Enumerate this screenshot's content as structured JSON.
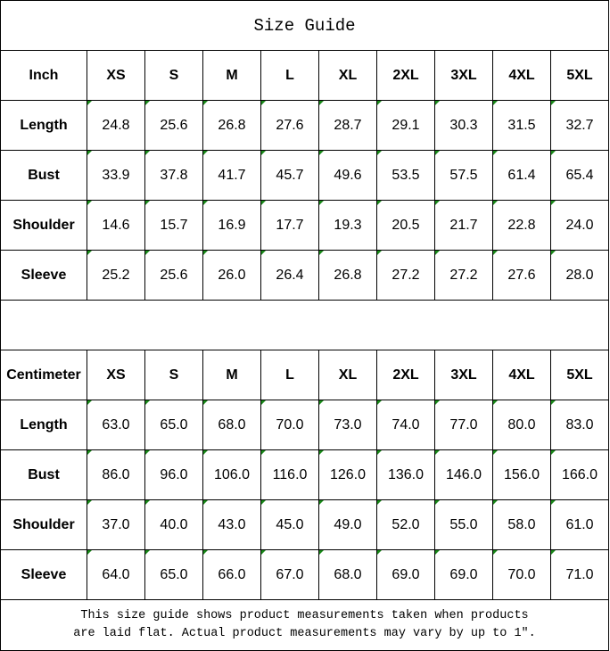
{
  "title": "Size Guide",
  "sizes": [
    "XS",
    "S",
    "M",
    "L",
    "XL",
    "2XL",
    "3XL",
    "4XL",
    "5XL"
  ],
  "tables": [
    {
      "unit": "Inch",
      "rows": [
        {
          "label": "Length",
          "values": [
            "24.8",
            "25.6",
            "26.8",
            "27.6",
            "28.7",
            "29.1",
            "30.3",
            "31.5",
            "32.7"
          ]
        },
        {
          "label": "Bust",
          "values": [
            "33.9",
            "37.8",
            "41.7",
            "45.7",
            "49.6",
            "53.5",
            "57.5",
            "61.4",
            "65.4"
          ]
        },
        {
          "label": "Shoulder",
          "values": [
            "14.6",
            "15.7",
            "16.9",
            "17.7",
            "19.3",
            "20.5",
            "21.7",
            "22.8",
            "24.0"
          ]
        },
        {
          "label": "Sleeve",
          "values": [
            "25.2",
            "25.6",
            "26.0",
            "26.4",
            "26.8",
            "27.2",
            "27.2",
            "27.6",
            "28.0"
          ]
        }
      ]
    },
    {
      "unit": "Centimeter",
      "rows": [
        {
          "label": "Length",
          "values": [
            "63.0",
            "65.0",
            "68.0",
            "70.0",
            "73.0",
            "74.0",
            "77.0",
            "80.0",
            "83.0"
          ]
        },
        {
          "label": "Bust",
          "values": [
            "86.0",
            "96.0",
            "106.0",
            "116.0",
            "126.0",
            "136.0",
            "146.0",
            "156.0",
            "166.0"
          ]
        },
        {
          "label": "Shoulder",
          "values": [
            "37.0",
            "40.0",
            "43.0",
            "45.0",
            "49.0",
            "52.0",
            "55.0",
            "58.0",
            "61.0"
          ]
        },
        {
          "label": "Sleeve",
          "values": [
            "64.0",
            "65.0",
            "66.0",
            "67.0",
            "68.0",
            "69.0",
            "69.0",
            "70.0",
            "71.0"
          ]
        }
      ]
    }
  ],
  "footer": {
    "line1": "This size guide shows product measurements taken when products",
    "line2": "are laid flat. Actual product measurements may vary by up to 1″."
  },
  "colors": {
    "error_indicator": "#1a8a1a",
    "border": "#000000"
  }
}
